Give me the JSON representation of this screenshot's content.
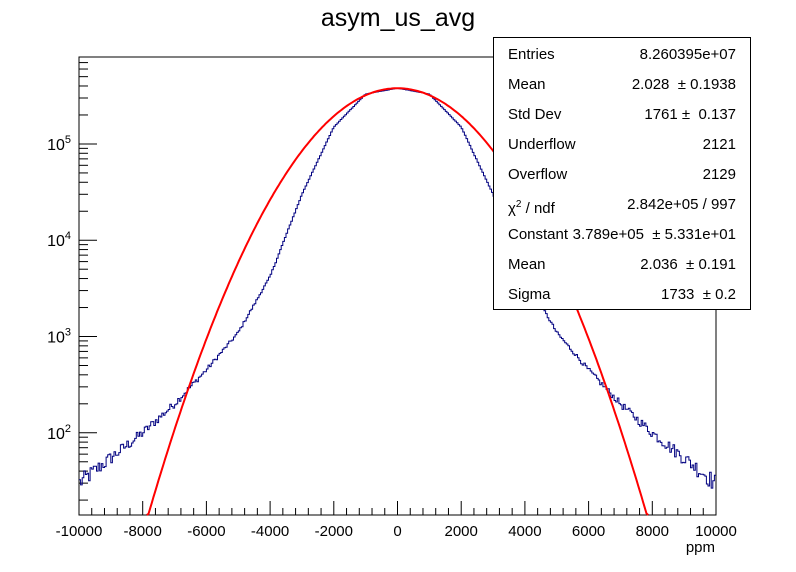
{
  "title": "asym_us_avg",
  "stats": [
    {
      "label": "Entries",
      "value": "8.260395e+07"
    },
    {
      "label": "Mean",
      "value": "2.028  ± 0.1938"
    },
    {
      "label": "Std Dev",
      "value": "1761 ±  0.137"
    },
    {
      "label": "Underflow",
      "value": "2121"
    },
    {
      "label": "Overflow",
      "value": "2129"
    },
    {
      "label": "χ2 / ndf",
      "value": "2.842e+05 / 997"
    },
    {
      "label": "Constant",
      "value": "3.789e+05  ± 5.331e+01"
    },
    {
      "label": "Mean",
      "value": "2.036  ± 0.191"
    },
    {
      "label": "Sigma",
      "value": "1733  ± 0.2"
    }
  ],
  "chart_data": {
    "type": "line",
    "title": "asym_us_avg",
    "xlabel": "ppm",
    "ylabel": "",
    "xlim": [
      -10000,
      10000
    ],
    "ylim": [
      14,
      800000
    ],
    "yscale": "log",
    "grid": false,
    "legend": "none",
    "x_ticks": [
      "-10000",
      "-8000",
      "-6000",
      "-4000",
      "-2000",
      "0",
      "2000",
      "4000",
      "6000",
      "8000",
      "10000"
    ],
    "y_ticks": [
      {
        "base": "10",
        "exp": "2",
        "value": 100
      },
      {
        "base": "10",
        "exp": "3",
        "value": 1000
      },
      {
        "base": "10",
        "exp": "4",
        "value": 10000
      },
      {
        "base": "10",
        "exp": "5",
        "value": 100000
      }
    ],
    "series": [
      {
        "color": "#000080",
        "x": [
          -10000,
          -9000,
          -8000,
          -7000,
          -6000,
          -5000,
          -4000,
          -3000,
          -2000,
          -1000,
          0,
          1000,
          2000,
          3000,
          4000,
          5000,
          6000,
          7000,
          8000,
          9000,
          10000
        ],
        "values": [
          30,
          55,
          100,
          200,
          450,
          1100,
          4200,
          30000,
          150000,
          330000,
          379000,
          330000,
          150000,
          30000,
          4200,
          1100,
          450,
          200,
          100,
          55,
          30
        ]
      },
      {
        "color": "#ff0000",
        "fit": {
          "constant": 378900,
          "mean": 2.036,
          "sigma": 1733
        },
        "xrange": [
          -7870,
          7870
        ]
      }
    ]
  }
}
